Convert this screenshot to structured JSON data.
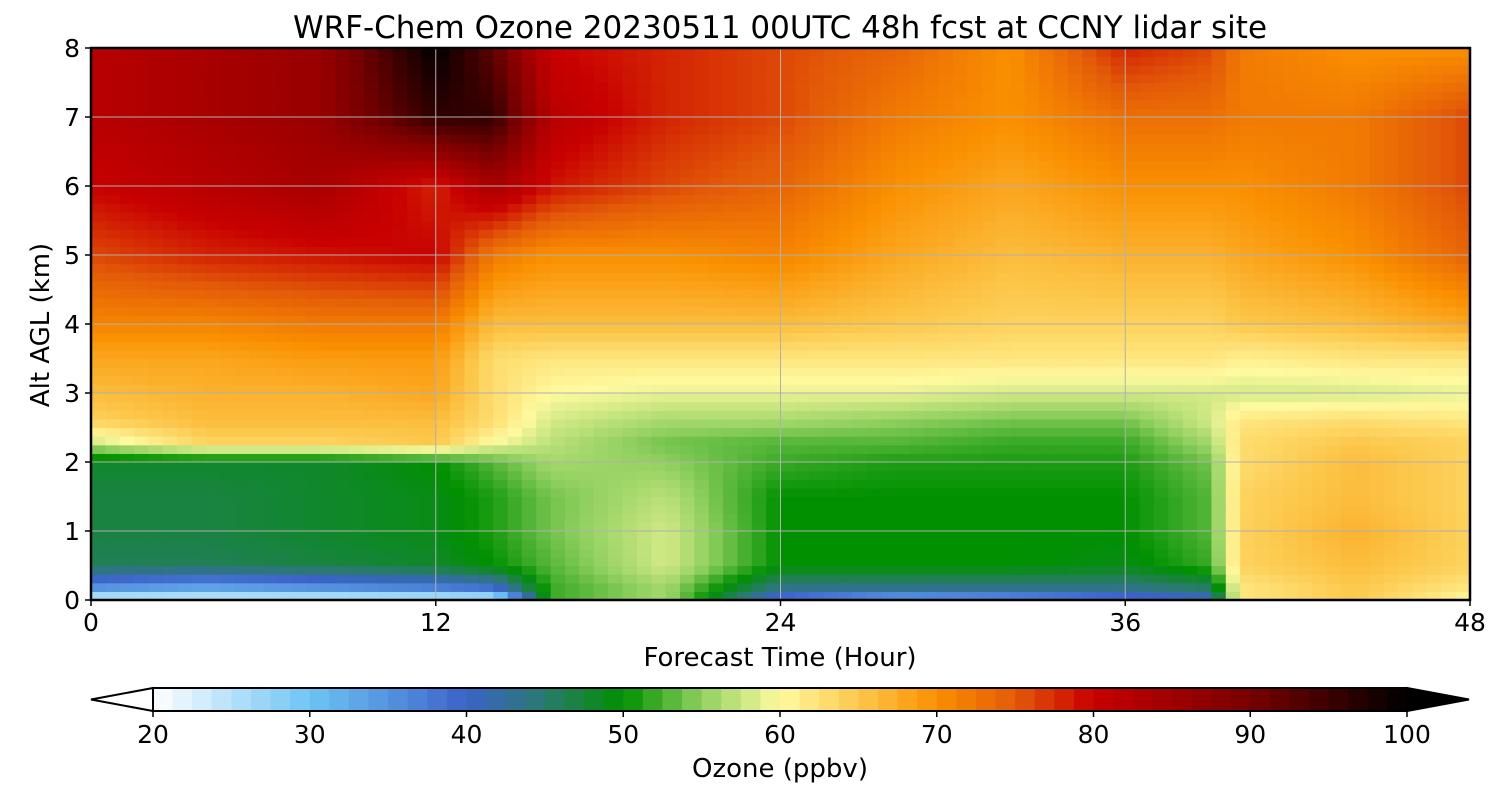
{
  "chart_data": {
    "type": "heatmap",
    "title": "WRF-Chem Ozone  20230511 00UTC 48h fcst at CCNY lidar site",
    "xlabel": "Forecast Time (Hour)",
    "ylabel": "Alt AGL (km)",
    "xlim": [
      0,
      48
    ],
    "ylim": [
      0,
      8
    ],
    "x_ticks": [
      "0",
      "12",
      "24",
      "36",
      "48"
    ],
    "y_ticks": [
      "0",
      "1",
      "2",
      "3",
      "4",
      "5",
      "6",
      "7",
      "8"
    ],
    "grid": true,
    "colorbar": {
      "label": "Ozone  (ppbv)",
      "range": [
        20,
        100
      ],
      "ticks": [
        "20",
        "30",
        "40",
        "50",
        "60",
        "70",
        "80",
        "90",
        "100"
      ],
      "extend": "both",
      "stops": [
        {
          "v": 20,
          "c": "#ffffff"
        },
        {
          "v": 30,
          "c": "#6ec4f4"
        },
        {
          "v": 40,
          "c": "#3b63c8"
        },
        {
          "v": 45,
          "c": "#2a7a6e"
        },
        {
          "v": 50,
          "c": "#009000"
        },
        {
          "v": 55,
          "c": "#90d060"
        },
        {
          "v": 60,
          "c": "#fffaa0"
        },
        {
          "v": 65,
          "c": "#fcc84c"
        },
        {
          "v": 70,
          "c": "#fa9000"
        },
        {
          "v": 75,
          "c": "#e35a08"
        },
        {
          "v": 80,
          "c": "#c80000"
        },
        {
          "v": 90,
          "c": "#780000"
        },
        {
          "v": 100,
          "c": "#000000"
        }
      ]
    },
    "times": [
      0,
      4,
      8,
      12,
      14,
      16,
      20,
      24,
      28,
      32,
      36,
      39,
      40,
      44,
      48
    ],
    "altitudes": [
      0,
      0.2,
      0.5,
      1,
      1.5,
      2,
      2.3,
      2.6,
      3,
      3.5,
      4,
      5,
      6,
      7,
      8
    ],
    "values": [
      [
        22,
        22,
        22,
        22,
        22,
        52,
        56,
        38,
        32,
        34,
        38,
        40,
        62,
        65,
        60
      ],
      [
        36,
        34,
        36,
        38,
        40,
        52,
        56,
        44,
        44,
        44,
        44,
        46,
        62,
        65,
        62
      ],
      [
        46,
        46,
        47,
        48,
        50,
        53,
        58,
        50,
        50,
        50,
        49,
        52,
        64,
        66,
        64
      ],
      [
        47,
        47,
        48,
        49,
        51,
        54,
        58,
        50,
        50,
        50,
        50,
        53,
        64,
        67,
        64
      ],
      [
        47,
        47,
        48,
        49,
        51,
        54,
        57,
        50,
        50,
        50,
        50,
        53,
        64,
        66,
        64
      ],
      [
        48,
        48,
        48,
        50,
        53,
        56,
        55,
        52,
        51,
        51,
        51,
        54,
        63,
        66,
        64
      ],
      [
        58,
        64,
        64,
        65,
        60,
        57,
        54,
        53,
        53,
        52,
        52,
        56,
        63,
        65,
        64
      ],
      [
        64,
        66,
        66,
        66,
        63,
        58,
        56,
        56,
        55,
        54,
        54,
        58,
        62,
        63,
        62
      ],
      [
        66,
        67,
        67,
        68,
        63,
        60,
        59,
        59,
        59,
        58,
        58,
        58,
        58,
        58,
        59
      ],
      [
        68,
        68,
        69,
        69,
        63,
        62,
        62,
        62,
        62,
        62,
        62,
        62,
        61,
        62,
        62
      ],
      [
        71,
        71,
        72,
        72,
        66,
        66,
        66,
        66,
        65,
        64,
        64,
        64,
        65,
        66,
        68
      ],
      [
        76,
        78,
        79,
        80,
        72,
        70,
        70,
        71,
        68,
        66,
        67,
        67,
        68,
        70,
        74
      ],
      [
        80,
        82,
        84,
        78,
        84,
        79,
        76,
        74,
        70,
        68,
        70,
        70,
        70,
        72,
        76
      ],
      [
        82,
        84,
        86,
        96,
        96,
        82,
        78,
        76,
        72,
        70,
        73,
        73,
        72,
        72,
        76
      ],
      [
        82,
        84,
        86,
        100,
        92,
        80,
        78,
        76,
        74,
        70,
        78,
        76,
        72,
        70,
        70
      ]
    ]
  }
}
